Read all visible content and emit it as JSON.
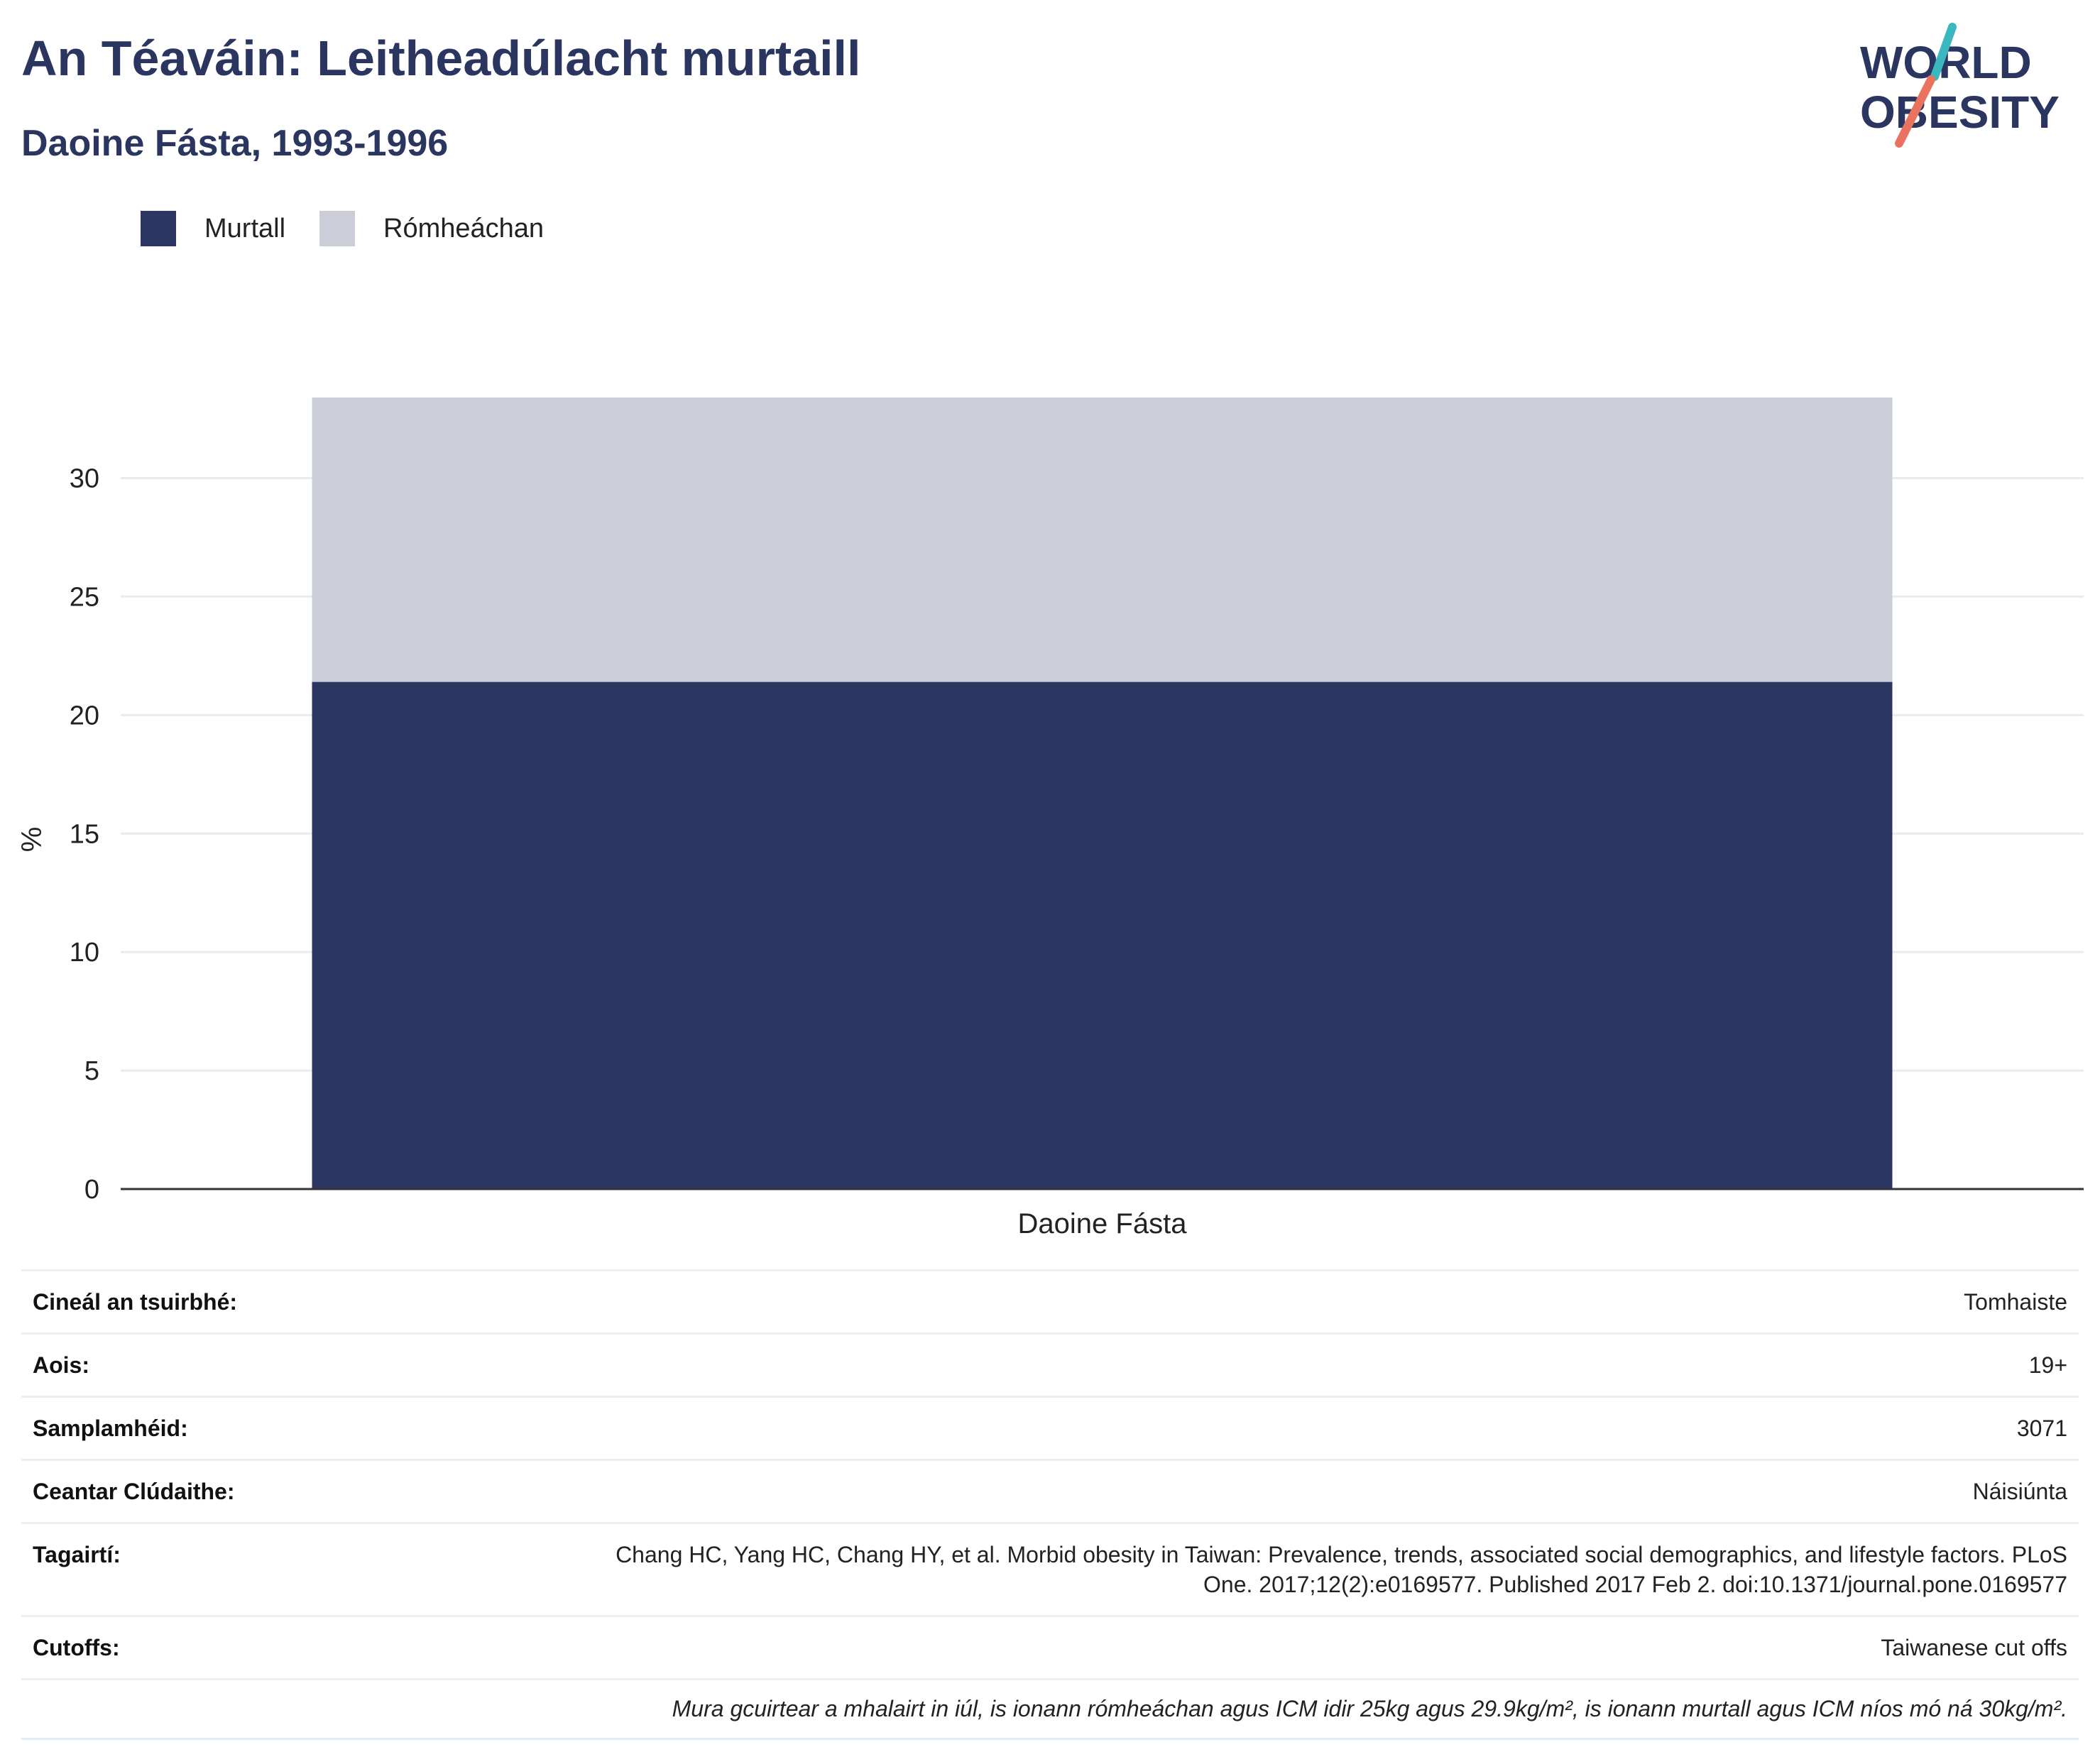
{
  "header": {
    "title": "An Téaváin: Leitheadúlacht murtaill",
    "subtitle": "Daoine Fásta, 1993-1996"
  },
  "logo": {
    "line1": "WORLD",
    "line2": "OBESITY",
    "icon": "world-obesity-logo",
    "accent_teal": "#3bb7c0",
    "accent_coral": "#e9735e"
  },
  "colors": {
    "obese": "#2b3662",
    "overweight": "#cbcdd8",
    "title": "#2a3560"
  },
  "legend": [
    {
      "label": "Murtall",
      "color": "#2b3662"
    },
    {
      "label": "Rómheáchan",
      "color": "#cbcdd8"
    }
  ],
  "chart_data": {
    "type": "bar",
    "stacked": true,
    "categories": [
      "Daoine Fásta"
    ],
    "series": [
      {
        "name": "Murtall",
        "values": [
          21.4
        ]
      },
      {
        "name": "Rómheáchan",
        "values": [
          12.0
        ]
      }
    ],
    "ylabel": "%",
    "xlabel": "",
    "ylim": [
      0,
      33.4
    ],
    "yticks": [
      0,
      5,
      10,
      15,
      20,
      25,
      30
    ],
    "grid": true,
    "legend_position": "top-left"
  },
  "info": [
    {
      "label": "Cineál an tsuirbhé:",
      "value": "Tomhaiste"
    },
    {
      "label": "Aois:",
      "value": "19+"
    },
    {
      "label": "Samplamhéid:",
      "value": "3071"
    },
    {
      "label": "Ceantar Clúdaithe:",
      "value": "Náisiúnta"
    },
    {
      "label": "Tagairtí:",
      "value": "Chang HC, Yang HC, Chang HY, et al. Morbid obesity in Taiwan: Prevalence, trends, associated social demographics, and lifestyle factors. PLoS One. 2017;12(2):e0169577. Published 2017 Feb 2. doi:10.1371/journal.pone.0169577"
    },
    {
      "label": "Cutoffs:",
      "value": "Taiwanese cut offs"
    }
  ],
  "note": "Mura gcuirtear a mhalairt in iúl, is ionann rómheáchan agus ICM idir 25kg agus 29.9kg/m², is ionann murtall agus ICM níos mó ná 30kg/m²."
}
